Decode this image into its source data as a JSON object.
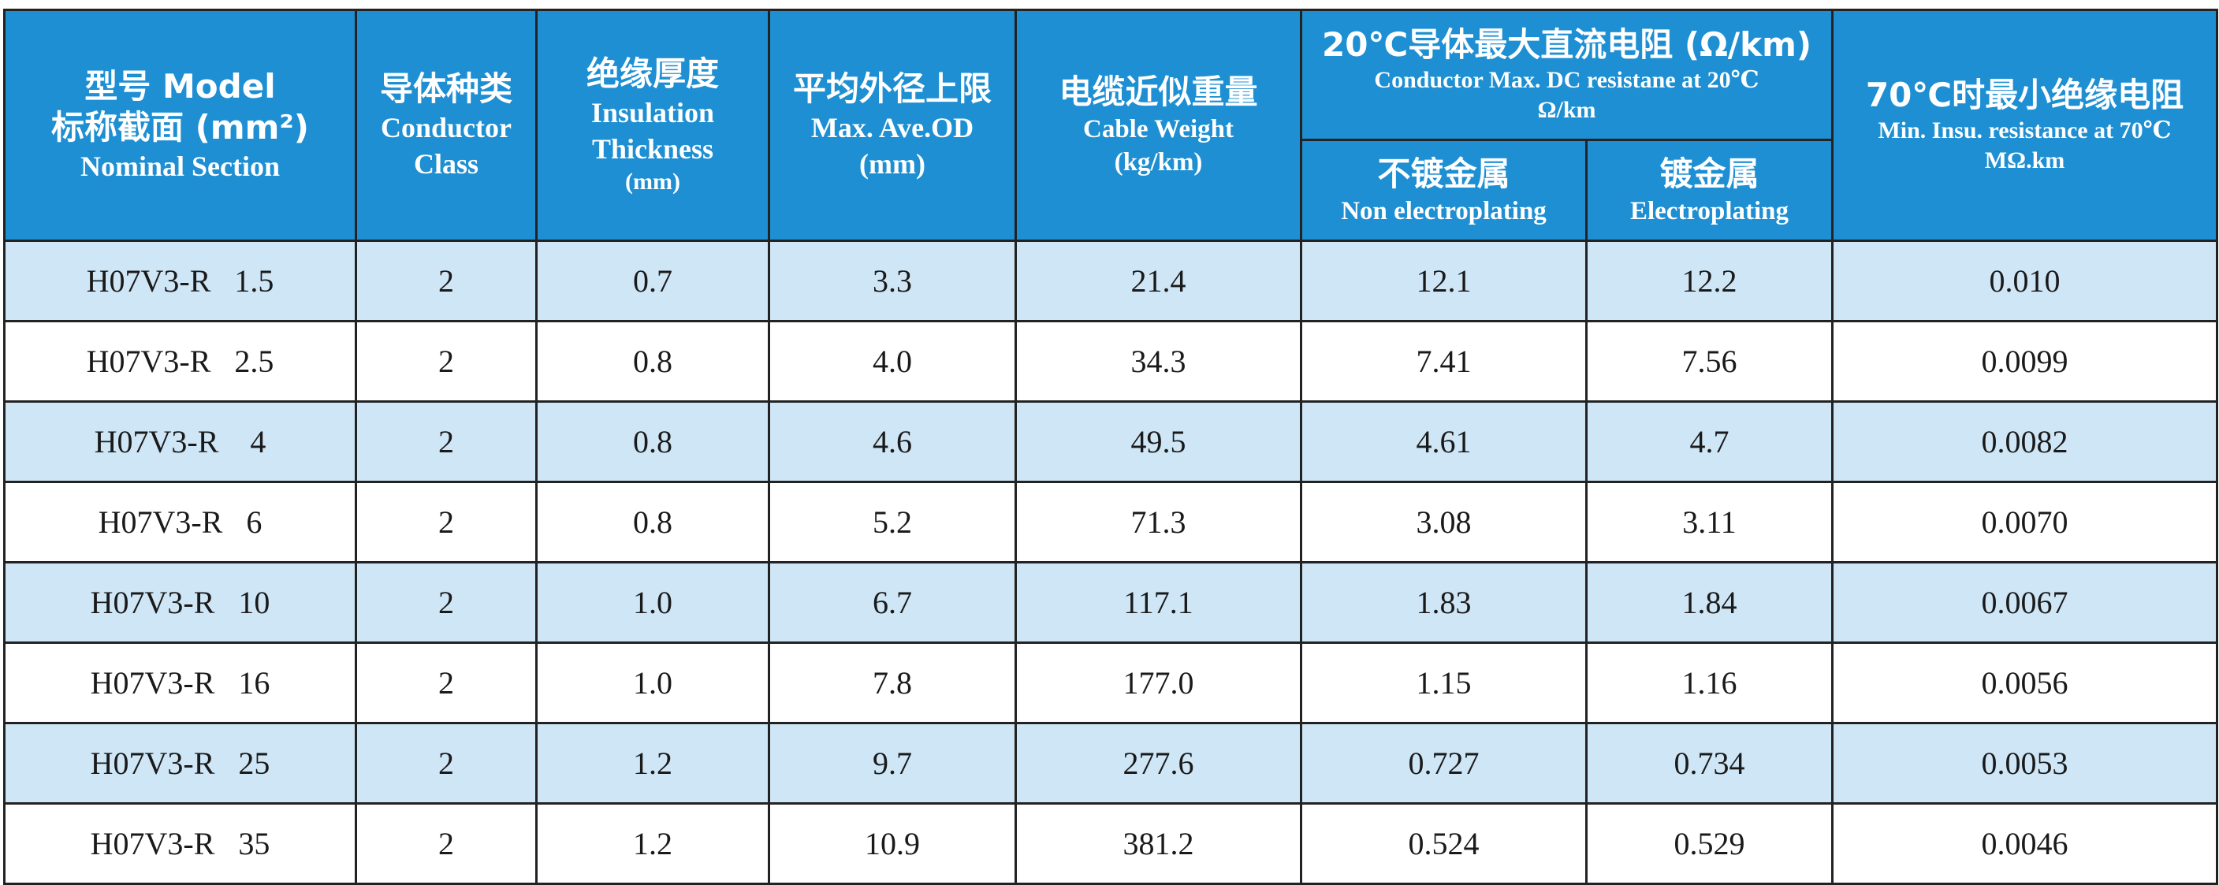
{
  "table": {
    "headers": {
      "model": {
        "zh1": "型号 Model",
        "zh2": "标称截面 (mm²)",
        "en": "Nominal Section"
      },
      "class": {
        "zh": "导体种类",
        "en1": "Conductor",
        "en2": "Class"
      },
      "insulation": {
        "zh": "绝缘厚度",
        "en1": "Insulation",
        "en2": "Thickness",
        "unit": "(mm)"
      },
      "od": {
        "zh": "平均外径上限",
        "en": "Max. Ave.OD",
        "unit": "(mm)"
      },
      "weight": {
        "zh": "电缆近似重量",
        "en": "Cable Weight",
        "unit": "(kg/km)"
      },
      "resistance": {
        "zh": "20℃导体最大直流电阻 (Ω/km)",
        "en1": "Conductor Max. DC resistane at 20℃",
        "en2": "Ω/km",
        "sub1_zh": "不镀金属",
        "sub1_en": "Non electroplating",
        "sub2_zh": "镀金属",
        "sub2_en": "Electroplating"
      },
      "insu_res": {
        "zh": "70℃时最小绝缘电阻",
        "en1": "Min. Insu. resistance at 70℃",
        "en2": "MΩ.km"
      }
    },
    "rows": [
      {
        "model": "H07V3-R   1.5",
        "class": "2",
        "insulation": "0.7",
        "od": "3.3",
        "weight": "21.4",
        "non_plated": "12.1",
        "plated": "12.2",
        "insu_res": "0.010"
      },
      {
        "model": "H07V3-R   2.5",
        "class": "2",
        "insulation": "0.8",
        "od": "4.0",
        "weight": "34.3",
        "non_plated": "7.41",
        "plated": "7.56",
        "insu_res": "0.0099"
      },
      {
        "model": "H07V3-R    4",
        "class": "2",
        "insulation": "0.8",
        "od": "4.6",
        "weight": "49.5",
        "non_plated": "4.61",
        "plated": "4.7",
        "insu_res": "0.0082"
      },
      {
        "model": "H07V3-R   6",
        "class": "2",
        "insulation": "0.8",
        "od": "5.2",
        "weight": "71.3",
        "non_plated": "3.08",
        "plated": "3.11",
        "insu_res": "0.0070"
      },
      {
        "model": "H07V3-R   10",
        "class": "2",
        "insulation": "1.0",
        "od": "6.7",
        "weight": "117.1",
        "non_plated": "1.83",
        "plated": "1.84",
        "insu_res": "0.0067"
      },
      {
        "model": "H07V3-R   16",
        "class": "2",
        "insulation": "1.0",
        "od": "7.8",
        "weight": "177.0",
        "non_plated": "1.15",
        "plated": "1.16",
        "insu_res": "0.0056"
      },
      {
        "model": "H07V3-R   25",
        "class": "2",
        "insulation": "1.2",
        "od": "9.7",
        "weight": "277.6",
        "non_plated": "0.727",
        "plated": "0.734",
        "insu_res": "0.0053"
      },
      {
        "model": "H07V3-R   35",
        "class": "2",
        "insulation": "1.2",
        "od": "10.9",
        "weight": "381.2",
        "non_plated": "0.524",
        "plated": "0.529",
        "insu_res": "0.0046"
      }
    ]
  },
  "colors": {
    "header_bg": "#1d8fd2",
    "header_text": "#ffffff",
    "row_alt_bg": "#cfe6f6",
    "row_bg": "#ffffff",
    "border": "#222222"
  }
}
